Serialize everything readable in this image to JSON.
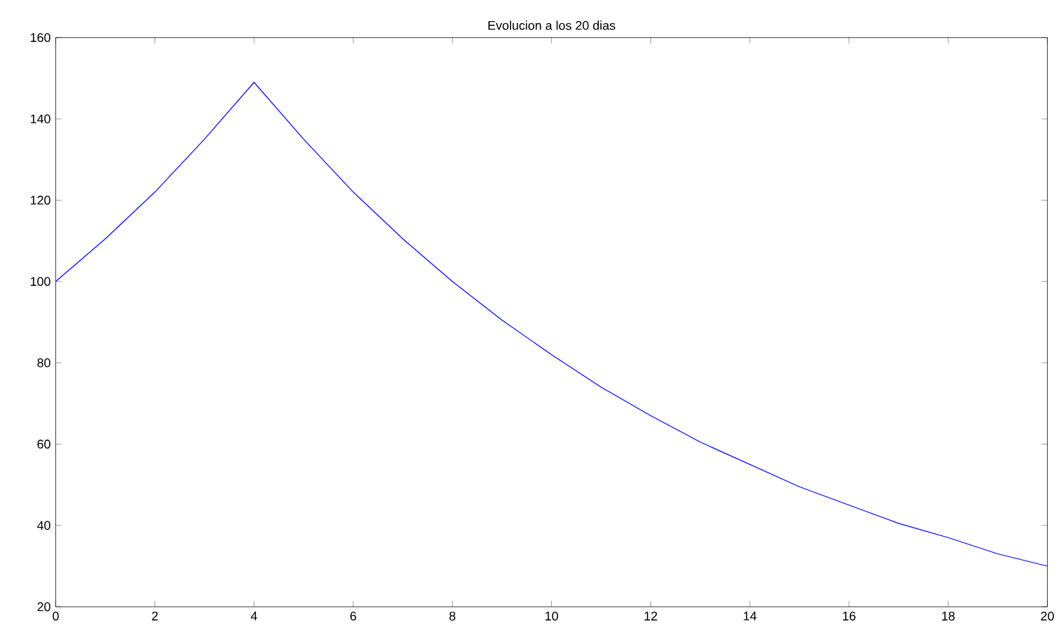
{
  "chart_data": {
    "type": "line",
    "title": "Evolucion a los 20 dias",
    "x": [
      0,
      1,
      2,
      3,
      4,
      5,
      6,
      7,
      8,
      9,
      10,
      11,
      12,
      13,
      14,
      15,
      16,
      17,
      18,
      19,
      20
    ],
    "series": [
      {
        "color": "#0000ff",
        "values": [
          100,
          110.5,
          122,
          135,
          149,
          135,
          122,
          110.5,
          100,
          90.5,
          82,
          74,
          67,
          60.5,
          55,
          49.5,
          45,
          40.5,
          37,
          33,
          30
        ]
      }
    ],
    "xlim": [
      0,
      20
    ],
    "xticks": [
      0,
      2,
      4,
      6,
      8,
      10,
      12,
      14,
      16,
      18,
      20
    ],
    "ylim": [
      20,
      160
    ],
    "yticks": [
      20,
      40,
      60,
      80,
      100,
      120,
      140,
      160
    ],
    "grid": false,
    "marker": "none",
    "line_style": "solid"
  }
}
